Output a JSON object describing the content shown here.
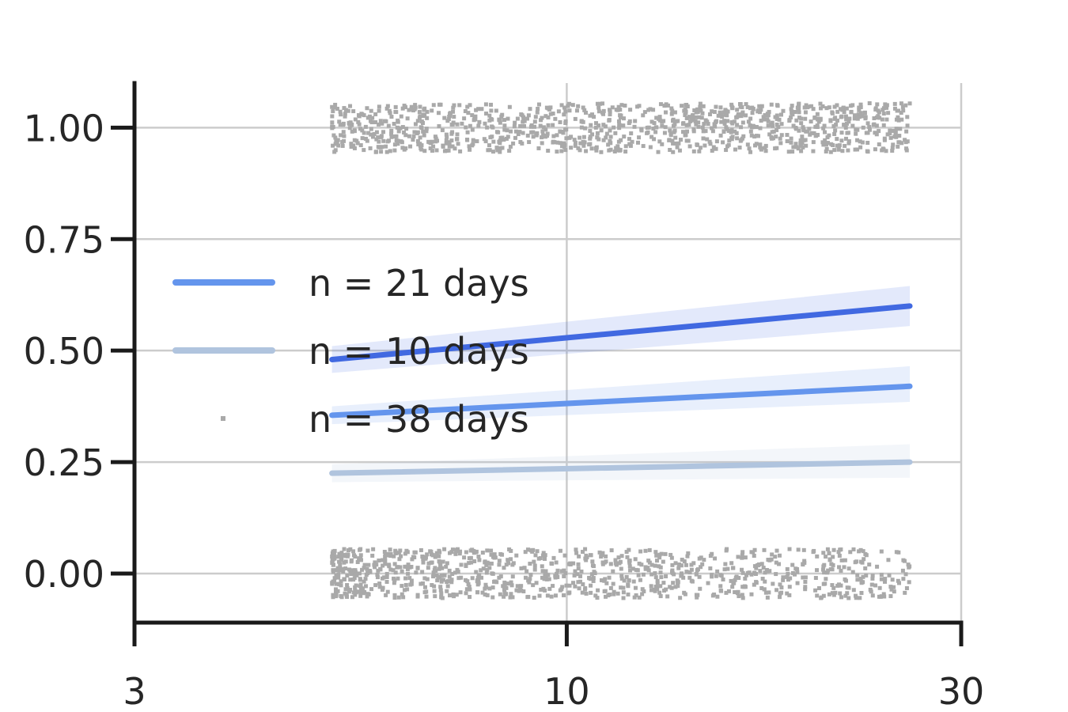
{
  "chart_data": {
    "type": "line",
    "x_scale": "log",
    "xlim": [
      3,
      30
    ],
    "ylim": [
      -0.11,
      1.1
    ],
    "grid": true,
    "legend_position": "center-left",
    "x_ticks": [
      {
        "value": 3,
        "label": "3"
      },
      {
        "value": 10,
        "label": "10"
      },
      {
        "value": 30,
        "label": "30"
      }
    ],
    "y_ticks": [
      {
        "value": 0.0,
        "label": "0.00"
      },
      {
        "value": 0.25,
        "label": "0.25"
      },
      {
        "value": 0.5,
        "label": "0.50"
      },
      {
        "value": 0.75,
        "label": "0.75"
      },
      {
        "value": 1.0,
        "label": "1.00"
      }
    ],
    "series": [
      {
        "name": "n = 21 days",
        "mark": "line",
        "color": "#6495ED",
        "x": [
          5.2,
          26
        ],
        "y": [
          0.355,
          0.42
        ],
        "ci_lower": [
          0.335,
          0.385
        ],
        "ci_upper": [
          0.375,
          0.465
        ]
      },
      {
        "name": "n = 10 days",
        "mark": "line",
        "color": "#B0C4DE",
        "x": [
          5.2,
          26
        ],
        "y": [
          0.225,
          0.25
        ],
        "ci_lower": [
          0.205,
          0.215
        ],
        "ci_upper": [
          0.245,
          0.29
        ]
      },
      {
        "name": "n = 38 days",
        "mark": "scatter",
        "color": "#A9A9A9"
      }
    ],
    "extra_line": {
      "color": "#4169E1",
      "x": [
        5.2,
        26
      ],
      "y": [
        0.48,
        0.6
      ],
      "ci_lower": [
        0.45,
        0.555
      ],
      "ci_upper": [
        0.51,
        0.645
      ]
    },
    "scatter_bands": [
      {
        "y": 1.0,
        "x_min": 5.2,
        "x_max": 26,
        "count": 1100
      },
      {
        "y": 0.0,
        "x_min": 5.2,
        "x_max": 26,
        "count": 1000
      }
    ]
  }
}
